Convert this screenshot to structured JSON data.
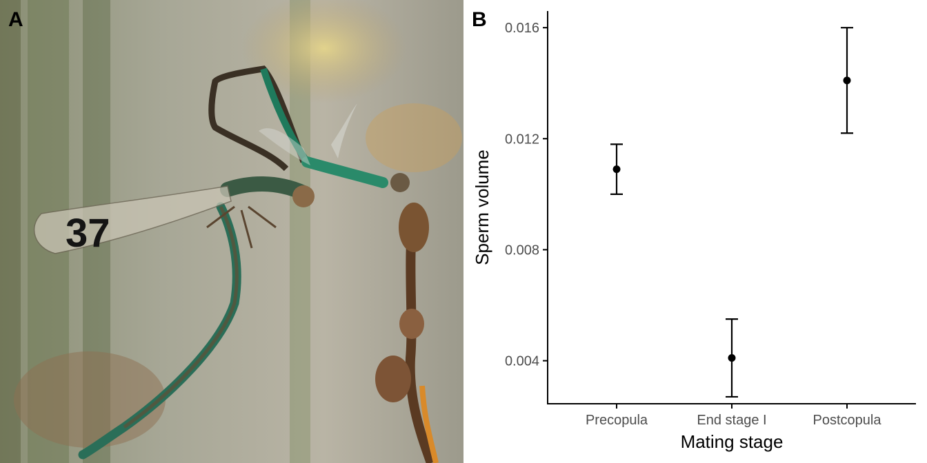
{
  "figure": {
    "panel_a_label": "A",
    "panel_b_label": "B",
    "photo": {
      "subject": "mating-dragonflies-photo",
      "wing_mark_text": "37"
    }
  },
  "chart_data": {
    "type": "scatter",
    "title": "",
    "xlabel": "Mating stage",
    "ylabel": "Sperm volume",
    "categories": [
      "Precopula",
      "End stage I",
      "Postcopula"
    ],
    "series": [
      {
        "values": [
          0.0109,
          0.0041,
          0.0141
        ],
        "error_low": [
          0.01,
          0.0027,
          0.0122
        ],
        "error_high": [
          0.0118,
          0.0055,
          0.016
        ]
      }
    ],
    "ylim": [
      0.00245,
      0.0166
    ],
    "yticks": [
      0.004,
      0.008,
      0.012,
      0.016
    ],
    "ytick_labels": [
      "0.004",
      "0.008",
      "0.012",
      "0.016"
    ],
    "grid": false,
    "legend": "none",
    "colors": {
      "points": "#000000",
      "axis": "#000000"
    }
  }
}
